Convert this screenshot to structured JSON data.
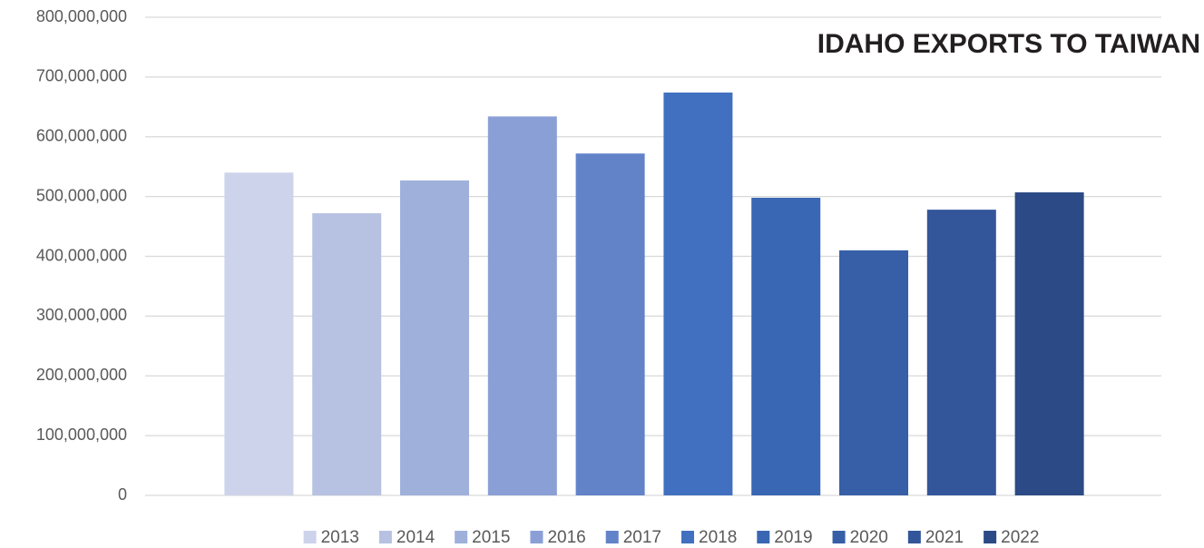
{
  "chart_data": {
    "type": "bar",
    "title": "IDAHO EXPORTS TO TAIWAN",
    "categories": [
      null
    ],
    "series": [
      {
        "name": "2013",
        "color": "#cdd3ea",
        "values": [
          540000000
        ]
      },
      {
        "name": "2014",
        "color": "#b7c2e2",
        "values": [
          472000000
        ]
      },
      {
        "name": "2015",
        "color": "#9fb0db",
        "values": [
          527000000
        ]
      },
      {
        "name": "2016",
        "color": "#8a9fd6",
        "values": [
          634000000
        ]
      },
      {
        "name": "2017",
        "color": "#6383c9",
        "values": [
          572000000
        ]
      },
      {
        "name": "2018",
        "color": "#4170c0",
        "values": [
          674000000
        ]
      },
      {
        "name": "2019",
        "color": "#3a67b3",
        "values": [
          498000000
        ]
      },
      {
        "name": "2020",
        "color": "#375fa8",
        "values": [
          410000000
        ]
      },
      {
        "name": "2021",
        "color": "#33559a",
        "values": [
          478000000
        ]
      },
      {
        "name": "2022",
        "color": "#2c4a86",
        "values": [
          507000000
        ]
      }
    ],
    "ylim": [
      0,
      800000000
    ],
    "yticks": [
      0,
      {
        "value": 100000000,
        "label": "100,000,000"
      },
      {
        "value": 200000000,
        "label": "200,000,000"
      },
      {
        "value": 300000000,
        "label": "300,000,000"
      },
      {
        "value": 400000000,
        "label": "400,000,000"
      },
      {
        "value": 500000000,
        "label": "500,000,000"
      },
      {
        "value": 600000000,
        "label": "600,000,000"
      },
      {
        "value": 700000000,
        "label": "700,000,000"
      },
      {
        "value": 800000000,
        "label": "800,000,000"
      }
    ],
    "grid": true,
    "legend": "bottom"
  }
}
